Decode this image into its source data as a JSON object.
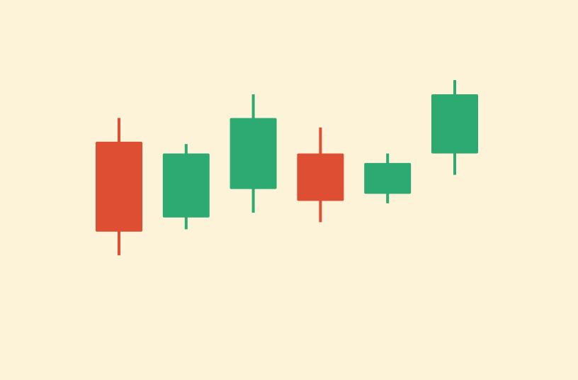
{
  "colors": {
    "background": "#FDF3D8",
    "up": "#2DAA72",
    "down": "#DE4E32"
  },
  "chart_data": {
    "type": "candlestick",
    "title": "",
    "xlabel": "",
    "ylabel": "",
    "axes_visible": false,
    "grid": false,
    "legend": "none",
    "ylim": [
      0,
      100
    ],
    "candles": [
      {
        "open": 74,
        "high": 84,
        "low": 26,
        "close": 36
      },
      {
        "open": 42,
        "high": 73,
        "low": 37,
        "close": 69
      },
      {
        "open": 54,
        "high": 94,
        "low": 44,
        "close": 84
      },
      {
        "open": 69,
        "high": 80,
        "low": 40,
        "close": 49
      },
      {
        "open": 52,
        "high": 69,
        "low": 48,
        "close": 65
      },
      {
        "open": 69,
        "high": 100,
        "low": 60,
        "close": 94
      }
    ]
  }
}
